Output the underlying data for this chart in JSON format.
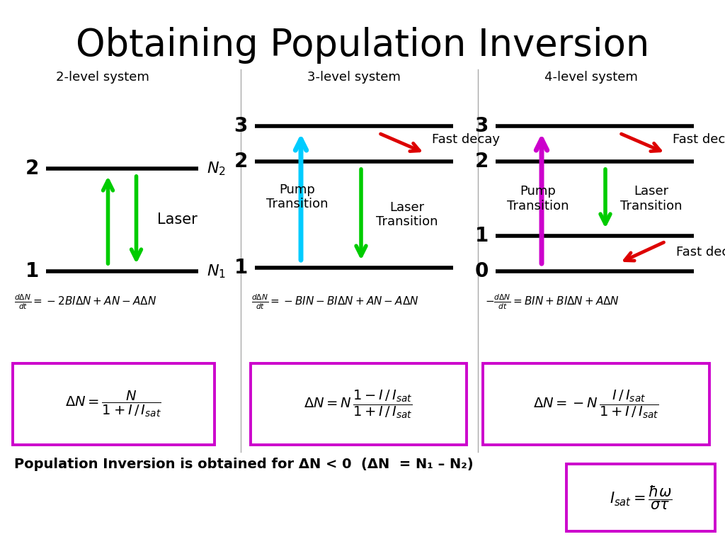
{
  "title": "Obtaining Population Inversion",
  "title_fontsize": 38,
  "bg_color": "#ffffff",
  "text_color": "#000000",
  "green": "#00cc00",
  "cyan": "#00ccff",
  "magenta": "#cc00cc",
  "red": "#dd0000",
  "box_color": "#cc00cc",
  "systems": [
    "2-level system",
    "3-level system",
    "4-level system"
  ],
  "bottom_text": "Population Inversion is obtained for ΔN < 0  (ΔN  = N₁ – N₂)"
}
